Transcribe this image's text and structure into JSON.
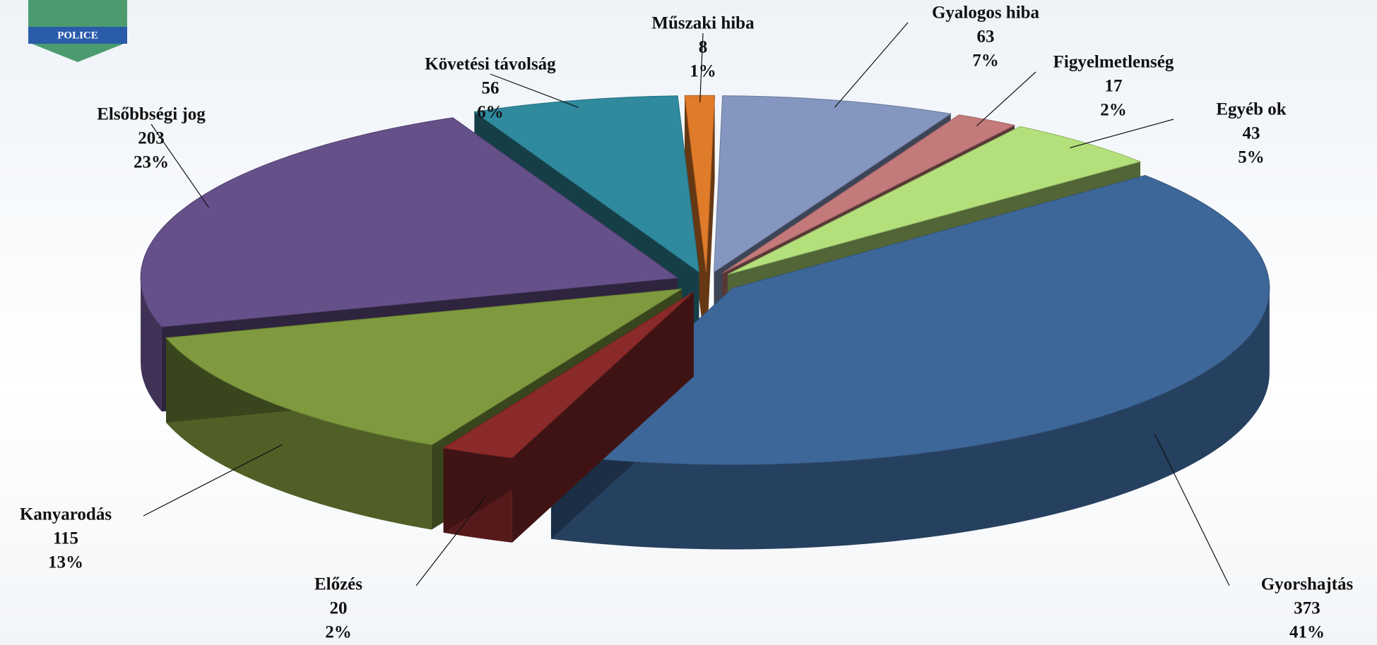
{
  "chart_data": {
    "type": "pie",
    "categories": [
      "Műszaki hiba",
      "Gyalogos hiba",
      "Figyelmetlenség",
      "Egyéb ok",
      "Gyorshajtás",
      "Előzés",
      "Kanyarodás",
      "Elsőbbségi jog",
      "Követési távolság"
    ],
    "values": [
      8,
      63,
      17,
      43,
      373,
      20,
      115,
      203,
      56
    ],
    "percent_labels": [
      "1%",
      "7%",
      "2%",
      "5%",
      "41%",
      "2%",
      "13%",
      "23%",
      "6%"
    ],
    "colors": [
      "#e07b2a",
      "#8597c0",
      "#c47a7a",
      "#b3e07a",
      "#3e6799",
      "#8b2a2a",
      "#7f9a3e",
      "#66508a",
      "#2f8a9e"
    ],
    "logo_text": "POLICE"
  }
}
